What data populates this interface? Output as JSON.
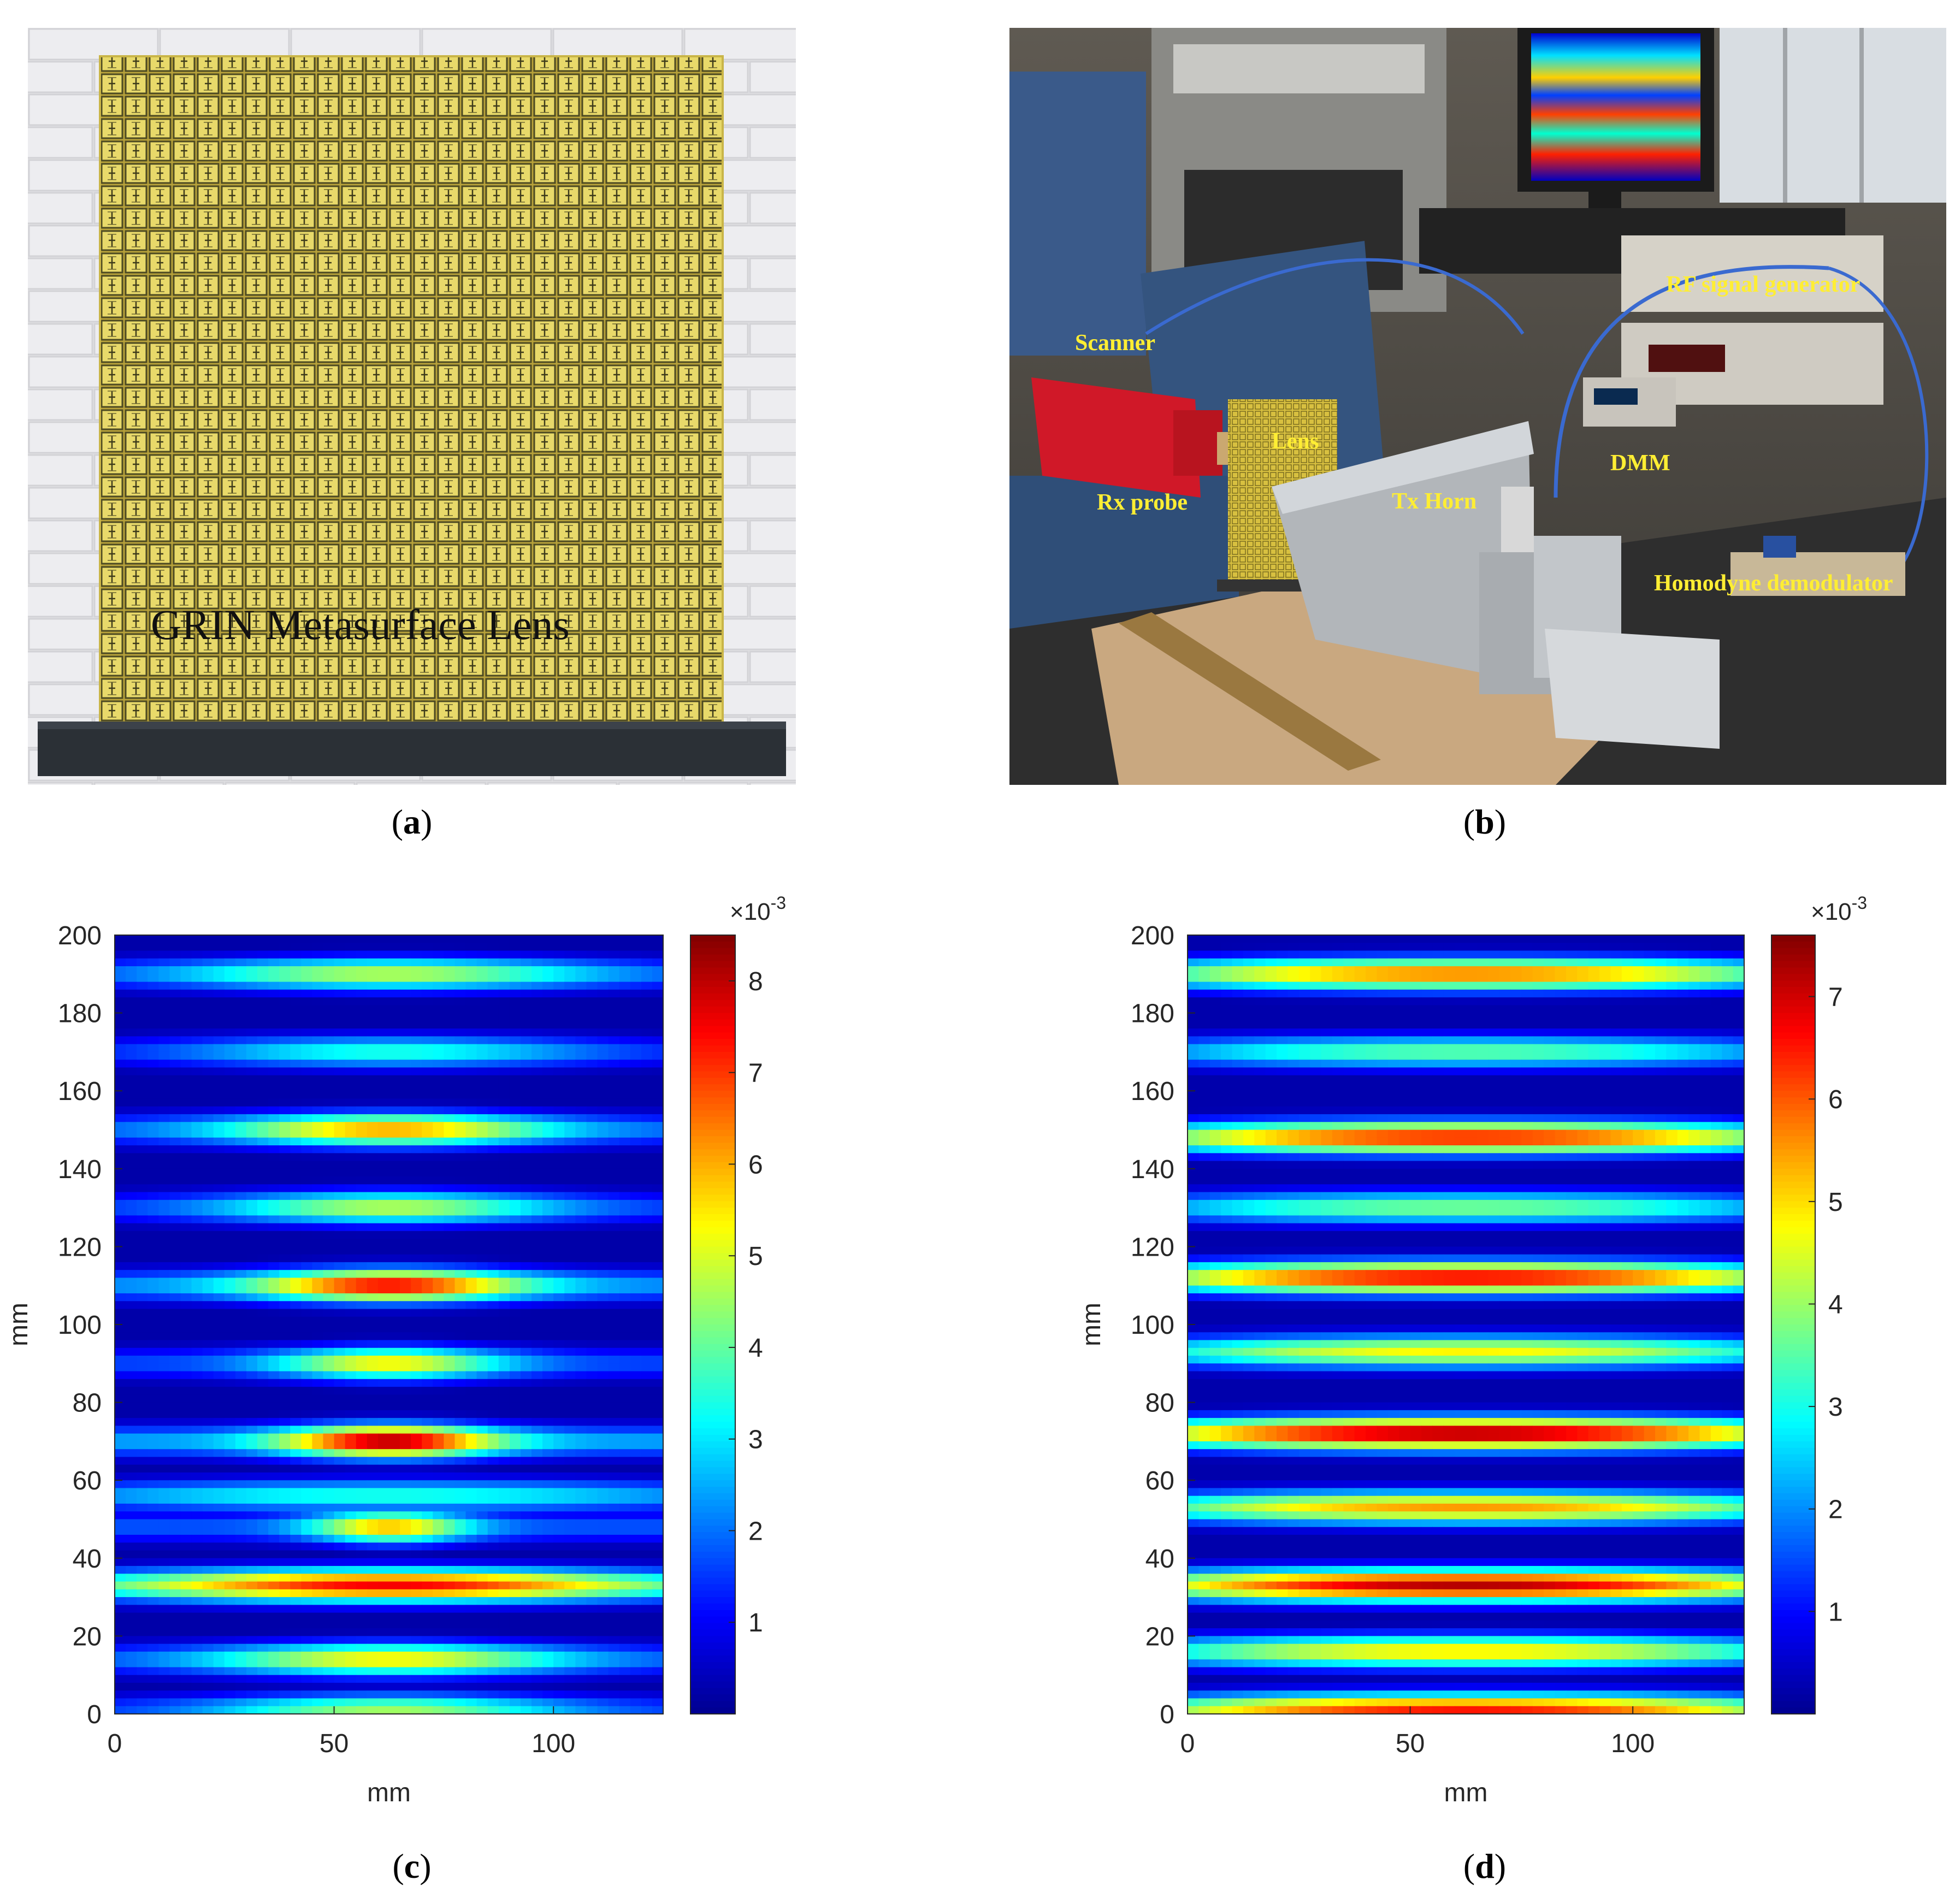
{
  "panels": {
    "a": {
      "caption_open": "(",
      "caption_letter": "a",
      "caption_close": ")",
      "overlay_title": "GRIN Metasurface Lens"
    },
    "b": {
      "caption_open": "(",
      "caption_letter": "b",
      "caption_close": ")",
      "labels": {
        "scanner": "Scanner",
        "lens": "Lens",
        "rx_probe": "Rx probe",
        "tx_horn": "Tx Horn",
        "dmm": "DMM",
        "rf_generator": "RF signal generator",
        "demodulator": "Homodyne demodulator"
      }
    },
    "c": {
      "caption_open": "(",
      "caption_letter": "c",
      "caption_close": ")"
    },
    "d": {
      "caption_open": "(",
      "caption_letter": "d",
      "caption_close": ")"
    }
  },
  "colormap": [
    "#00008f",
    "#0000ff",
    "#0080ff",
    "#00ffff",
    "#80ff80",
    "#ffff00",
    "#ff8000",
    "#ff0000",
    "#800000"
  ],
  "chart_data": [
    {
      "id": "c",
      "type": "heatmap",
      "xlabel": "mm",
      "ylabel": "mm",
      "xlim": [
        0,
        125
      ],
      "ylim": [
        0,
        200
      ],
      "xticks": [
        0,
        50,
        100
      ],
      "yticks": [
        0,
        20,
        40,
        60,
        80,
        100,
        120,
        140,
        160,
        180,
        200
      ],
      "colorbar": {
        "min": 0,
        "max": 8.5,
        "ticks": [
          1,
          2,
          3,
          4,
          5,
          6,
          7,
          8
        ],
        "exponent_label": "×10",
        "exponent": "-3"
      },
      "bands": [
        {
          "y": 1,
          "peak": 4.5,
          "width": 40
        },
        {
          "y": 14,
          "peak": 5.5,
          "width": 40
        },
        {
          "y": 33,
          "peak": 7.5,
          "width": 60
        },
        {
          "y": 48,
          "peak": 6.0,
          "width": 18
        },
        {
          "y": 56,
          "peak": 3.5,
          "width": 80
        },
        {
          "y": 70,
          "peak": 8.3,
          "width": 24
        },
        {
          "y": 90,
          "peak": 5.5,
          "width": 26
        },
        {
          "y": 110,
          "peak": 7.6,
          "width": 30
        },
        {
          "y": 130,
          "peak": 4.8,
          "width": 38
        },
        {
          "y": 150,
          "peak": 6.2,
          "width": 36
        },
        {
          "y": 170,
          "peak": 3.5,
          "width": 48
        },
        {
          "y": 190,
          "peak": 4.8,
          "width": 48
        }
      ]
    },
    {
      "id": "d",
      "type": "heatmap",
      "xlabel": "mm",
      "ylabel": "mm",
      "xlim": [
        0,
        125
      ],
      "ylim": [
        0,
        200
      ],
      "xticks": [
        0,
        50,
        100
      ],
      "yticks": [
        0,
        20,
        40,
        60,
        80,
        100,
        120,
        140,
        160,
        180,
        200
      ],
      "colorbar": {
        "min": 0,
        "max": 7.6,
        "ticks": [
          1,
          2,
          3,
          4,
          5,
          6,
          7
        ],
        "exponent_label": "×10",
        "exponent": "-3"
      },
      "bands": [
        {
          "y": 1,
          "peak": 6.5
        },
        {
          "y": 16,
          "peak": 5.0
        },
        {
          "y": 33,
          "peak": 7.2
        },
        {
          "y": 53,
          "peak": 5.5
        },
        {
          "y": 72,
          "peak": 7.4
        },
        {
          "y": 93,
          "peak": 4.8
        },
        {
          "y": 112,
          "peak": 6.8
        },
        {
          "y": 130,
          "peak": 3.8
        },
        {
          "y": 148,
          "peak": 6.5
        },
        {
          "y": 170,
          "peak": 3.6
        },
        {
          "y": 190,
          "peak": 5.8
        }
      ]
    }
  ]
}
